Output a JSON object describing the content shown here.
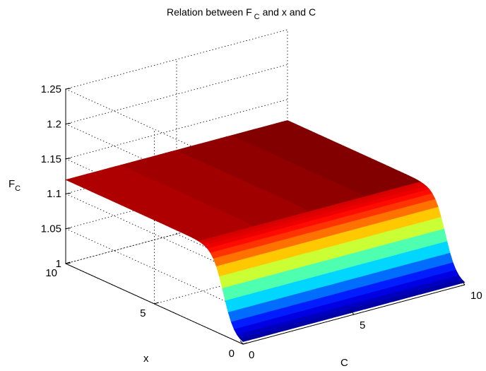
{
  "chart_data": {
    "type": "surface",
    "title_main": "Relation between F",
    "title_sub": "C",
    "title_rest": "and x and C",
    "xlabel": "C",
    "ylabel": "x",
    "zlabel_main": "F",
    "zlabel_sub": "C",
    "xlim": [
      0,
      10
    ],
    "ylim": [
      0,
      10
    ],
    "zlim": [
      1,
      1.25
    ],
    "x_ticks": [
      "0",
      "5",
      "10"
    ],
    "y_ticks": [
      "0",
      "5",
      "10"
    ],
    "z_ticks": [
      "1",
      "1.05",
      "1.1",
      "1.15",
      "1.2",
      "1.25"
    ],
    "grid": true,
    "colormap": "jet",
    "surface_description_values": {
      "plateau_value": 1.12,
      "baseline_value": 1.0,
      "transition_C_values": [
        0,
        5,
        10
      ],
      "plateau_x_range": [
        2,
        10
      ]
    }
  }
}
